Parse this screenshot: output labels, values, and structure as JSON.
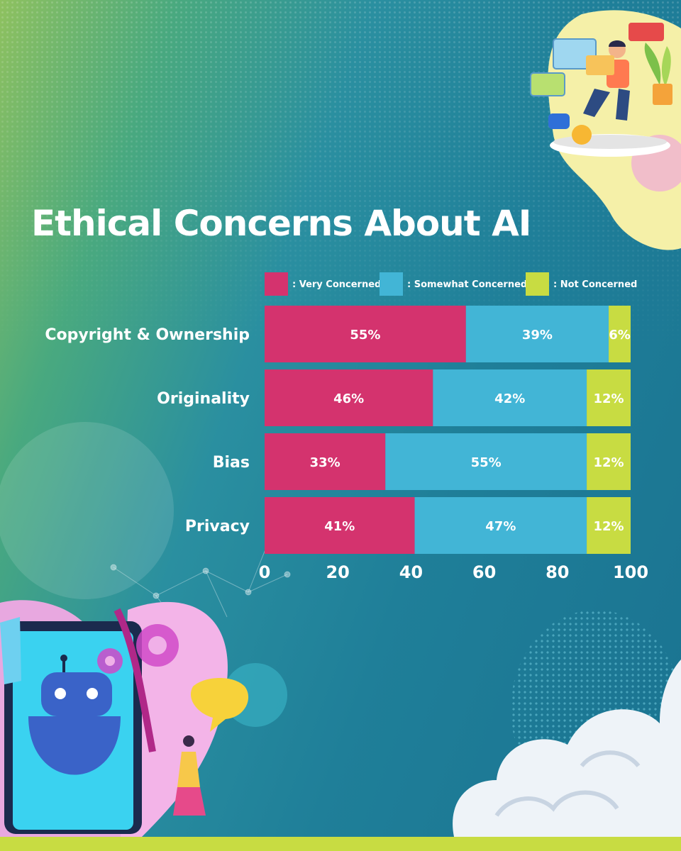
{
  "title": "Ethical Concerns About AI",
  "colors": {
    "very": "#d4336e",
    "somewhat": "#42b5d6",
    "not": "#c8dc42"
  },
  "chart_data": {
    "type": "bar",
    "orientation": "horizontal",
    "stacked": true,
    "title": "Ethical Concerns About AI",
    "categories": [
      "Copyright & Ownership",
      "Originality",
      "Bias",
      "Privacy"
    ],
    "series": [
      {
        "name": ": Very Concerned",
        "values": [
          55,
          46,
          33,
          41
        ],
        "labels": [
          "55%",
          "46%",
          "33%",
          "41%"
        ]
      },
      {
        "name": ": Somewhat Concerned",
        "values": [
          39,
          42,
          55,
          47
        ],
        "labels": [
          "39%",
          "42%",
          "55%",
          "47%"
        ]
      },
      {
        "name": ": Not Concerned",
        "values": [
          6,
          12,
          12,
          12
        ],
        "labels": [
          "6%",
          "12%",
          "12%",
          "12%"
        ]
      }
    ],
    "xlim": [
      0,
      100
    ],
    "xticks": [
      "0",
      "20",
      "40",
      "60",
      "80",
      "100"
    ],
    "legend": "top",
    "grid": false
  }
}
